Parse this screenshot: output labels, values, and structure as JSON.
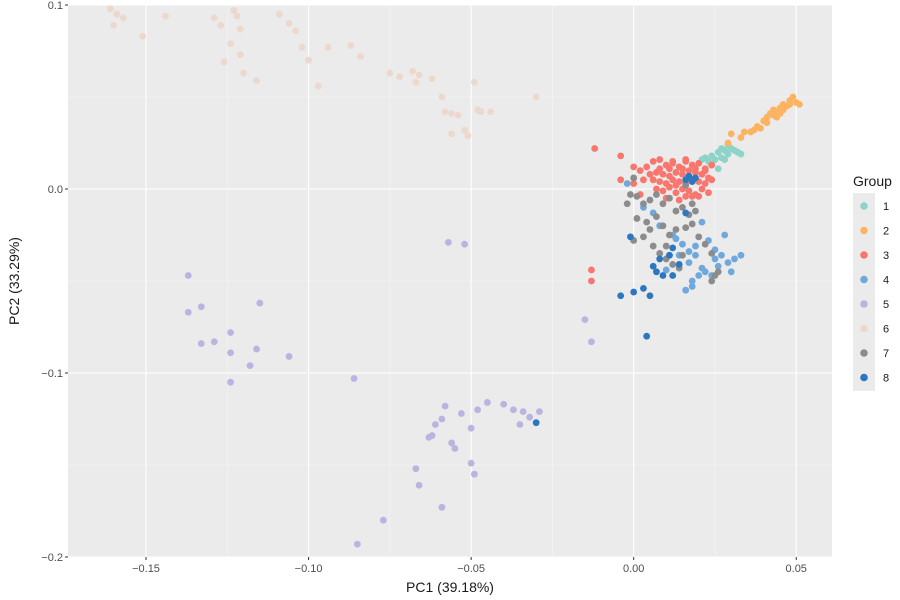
{
  "chart_data": {
    "type": "scatter",
    "title": "",
    "xlabel": "PC1 (39.18%)",
    "ylabel": "PC2 (33.29%)",
    "xlim": [
      -0.174,
      0.061
    ],
    "ylim": [
      -0.2,
      0.1
    ],
    "xticks": [
      -0.15,
      -0.1,
      -0.05,
      0.0,
      0.05
    ],
    "xtick_labels": [
      "−0.15",
      "−0.10",
      "−0.05",
      "0.00",
      "0.05"
    ],
    "yticks": [
      -0.2,
      -0.1,
      0.0,
      0.1
    ],
    "ytick_labels": [
      "−0.2",
      "−0.1",
      "0.0",
      "0.1"
    ],
    "grid": true,
    "legend": {
      "title": "Group",
      "placement": "right"
    },
    "series": [
      {
        "name": "1",
        "color": "#8dd3c7",
        "points": [
          [
            0.024,
            0.018
          ],
          [
            0.026,
            0.02
          ],
          [
            0.027,
            0.022
          ],
          [
            0.028,
            0.021
          ],
          [
            0.029,
            0.024
          ],
          [
            0.03,
            0.022
          ],
          [
            0.031,
            0.021
          ],
          [
            0.032,
            0.02
          ],
          [
            0.033,
            0.019
          ],
          [
            0.025,
            0.016
          ],
          [
            0.023,
            0.015
          ],
          [
            0.022,
            0.017
          ],
          [
            0.027,
            0.017
          ],
          [
            0.029,
            0.019
          ],
          [
            0.026,
            0.011
          ],
          [
            0.024,
            0.013
          ],
          [
            0.028,
            0.016
          ],
          [
            0.021,
            0.016
          ]
        ]
      },
      {
        "name": "2",
        "color": "#fdb462",
        "points": [
          [
            0.03,
            0.03
          ],
          [
            0.029,
            0.025
          ],
          [
            0.034,
            0.031
          ],
          [
            0.037,
            0.032
          ],
          [
            0.038,
            0.034
          ],
          [
            0.04,
            0.037
          ],
          [
            0.041,
            0.039
          ],
          [
            0.042,
            0.041
          ],
          [
            0.043,
            0.043
          ],
          [
            0.044,
            0.042
          ],
          [
            0.045,
            0.044
          ],
          [
            0.046,
            0.046
          ],
          [
            0.047,
            0.045
          ],
          [
            0.048,
            0.048
          ],
          [
            0.049,
            0.05
          ],
          [
            0.05,
            0.047
          ],
          [
            0.051,
            0.046
          ],
          [
            0.045,
            0.041
          ],
          [
            0.043,
            0.04
          ],
          [
            0.041,
            0.036
          ],
          [
            0.039,
            0.033
          ],
          [
            0.036,
            0.031
          ],
          [
            0.033,
            0.028
          ],
          [
            0.046,
            0.043
          ],
          [
            0.048,
            0.046
          ],
          [
            0.044,
            0.039
          ]
        ]
      },
      {
        "name": "3",
        "color": "#f8766d",
        "points": [
          [
            -0.012,
            0.022
          ],
          [
            -0.004,
            0.018
          ],
          [
            0.0,
            0.012
          ],
          [
            0.002,
            0.01
          ],
          [
            0.004,
            0.012
          ],
          [
            0.006,
            0.015
          ],
          [
            0.008,
            0.016
          ],
          [
            0.01,
            0.013
          ],
          [
            0.012,
            0.014
          ],
          [
            0.014,
            0.012
          ],
          [
            0.016,
            0.015
          ],
          [
            0.018,
            0.013
          ],
          [
            0.02,
            0.014
          ],
          [
            0.022,
            0.011
          ],
          [
            0.024,
            0.013
          ],
          [
            0.007,
            0.009
          ],
          [
            0.009,
            0.008
          ],
          [
            0.011,
            0.007
          ],
          [
            0.013,
            0.009
          ],
          [
            0.015,
            0.008
          ],
          [
            0.017,
            0.007
          ],
          [
            0.019,
            0.009
          ],
          [
            0.021,
            0.008
          ],
          [
            0.023,
            0.006
          ],
          [
            0.006,
            0.005
          ],
          [
            0.008,
            0.004
          ],
          [
            0.01,
            0.003
          ],
          [
            0.012,
            0.005
          ],
          [
            0.014,
            0.004
          ],
          [
            0.016,
            0.003
          ],
          [
            0.018,
            0.005
          ],
          [
            0.02,
            0.004
          ],
          [
            0.022,
            0.003
          ],
          [
            0.007,
            0.0
          ],
          [
            0.009,
            -0.001
          ],
          [
            0.011,
            0.001
          ],
          [
            0.013,
            -0.002
          ],
          [
            0.015,
            0.0
          ],
          [
            0.017,
            -0.001
          ],
          [
            0.019,
            -0.003
          ],
          [
            0.021,
            0.0
          ],
          [
            0.023,
            -0.002
          ],
          [
            0.01,
            -0.005
          ],
          [
            0.014,
            -0.006
          ],
          [
            0.018,
            -0.004
          ],
          [
            0.003,
            0.005
          ],
          [
            0.005,
            0.008
          ],
          [
            0.008,
            0.011
          ],
          [
            0.011,
            0.011
          ],
          [
            0.015,
            0.011
          ],
          [
            0.019,
            0.011
          ],
          [
            0.022,
            0.01
          ],
          [
            0.017,
            0.01
          ],
          [
            0.013,
            0.002
          ],
          [
            0.016,
            -0.004
          ],
          [
            0.02,
            -0.004
          ],
          [
            -0.004,
            0.005
          ],
          [
            0.0,
            0.003
          ],
          [
            0.002,
            -0.003
          ],
          [
            -0.013,
            -0.044
          ],
          [
            -0.013,
            -0.05
          ],
          [
            0.021,
            0.008
          ],
          [
            0.024,
            0.005
          ],
          [
            0.012,
            0.015
          ],
          [
            0.016,
            0.016
          ]
        ]
      },
      {
        "name": "4",
        "color": "#6fa8dc",
        "points": [
          [
            -0.002,
            0.003
          ],
          [
            0.003,
            -0.01
          ],
          [
            0.006,
            -0.013
          ],
          [
            0.008,
            -0.02
          ],
          [
            0.012,
            -0.025
          ],
          [
            0.015,
            -0.03
          ],
          [
            0.017,
            -0.034
          ],
          [
            0.019,
            -0.031
          ],
          [
            0.021,
            -0.018
          ],
          [
            0.023,
            -0.028
          ],
          [
            0.025,
            -0.033
          ],
          [
            0.027,
            -0.036
          ],
          [
            0.029,
            -0.04
          ],
          [
            0.03,
            -0.045
          ],
          [
            0.031,
            -0.038
          ],
          [
            0.033,
            -0.036
          ],
          [
            0.028,
            -0.025
          ],
          [
            0.026,
            -0.042
          ],
          [
            0.024,
            -0.047
          ],
          [
            0.022,
            -0.045
          ],
          [
            0.018,
            -0.05
          ],
          [
            0.018,
            -0.053
          ],
          [
            0.017,
            -0.04
          ],
          [
            0.014,
            -0.036
          ],
          [
            0.011,
            -0.036
          ],
          [
            0.01,
            -0.044
          ],
          [
            0.019,
            -0.036
          ],
          [
            0.02,
            -0.047
          ],
          [
            0.016,
            -0.055
          ],
          [
            0.013,
            -0.027
          ],
          [
            0.025,
            -0.038
          ],
          [
            0.021,
            -0.043
          ]
        ]
      },
      {
        "name": "5",
        "color": "#bcb3e0",
        "points": [
          [
            -0.137,
            -0.047
          ],
          [
            -0.137,
            -0.067
          ],
          [
            -0.133,
            -0.064
          ],
          [
            -0.133,
            -0.084
          ],
          [
            -0.129,
            -0.083
          ],
          [
            -0.124,
            -0.078
          ],
          [
            -0.124,
            -0.089
          ],
          [
            -0.124,
            -0.105
          ],
          [
            -0.115,
            -0.062
          ],
          [
            -0.116,
            -0.087
          ],
          [
            -0.118,
            -0.096
          ],
          [
            -0.106,
            -0.091
          ],
          [
            -0.086,
            -0.103
          ],
          [
            -0.057,
            -0.029
          ],
          [
            -0.052,
            -0.03
          ],
          [
            -0.058,
            -0.118
          ],
          [
            -0.059,
            -0.125
          ],
          [
            -0.061,
            -0.128
          ],
          [
            -0.062,
            -0.134
          ],
          [
            -0.063,
            -0.135
          ],
          [
            -0.053,
            -0.122
          ],
          [
            -0.056,
            -0.138
          ],
          [
            -0.055,
            -0.141
          ],
          [
            -0.05,
            -0.13
          ],
          [
            -0.048,
            -0.12
          ],
          [
            -0.045,
            -0.116
          ],
          [
            -0.04,
            -0.117
          ],
          [
            -0.037,
            -0.12
          ],
          [
            -0.035,
            -0.128
          ],
          [
            -0.034,
            -0.121
          ],
          [
            -0.032,
            -0.124
          ],
          [
            -0.029,
            -0.121
          ],
          [
            -0.067,
            -0.152
          ],
          [
            -0.066,
            -0.161
          ],
          [
            -0.059,
            -0.173
          ],
          [
            -0.05,
            -0.149
          ],
          [
            -0.049,
            -0.155
          ],
          [
            -0.077,
            -0.18
          ],
          [
            -0.085,
            -0.193
          ],
          [
            -0.015,
            -0.071
          ],
          [
            -0.013,
            -0.083
          ]
        ]
      },
      {
        "name": "6",
        "color": "#ecd8cc",
        "points": [
          [
            -0.168,
            0.103
          ],
          [
            -0.166,
            0.102
          ],
          [
            -0.161,
            0.098
          ],
          [
            -0.158,
            0.102
          ],
          [
            -0.159,
            0.095
          ],
          [
            -0.16,
            0.089
          ],
          [
            -0.157,
            0.093
          ],
          [
            -0.148,
            0.103
          ],
          [
            -0.151,
            0.083
          ],
          [
            -0.144,
            0.094
          ],
          [
            -0.129,
            0.093
          ],
          [
            -0.127,
            0.089
          ],
          [
            -0.124,
            0.101
          ],
          [
            -0.123,
            0.097
          ],
          [
            -0.122,
            0.094
          ],
          [
            -0.121,
            0.087
          ],
          [
            -0.124,
            0.079
          ],
          [
            -0.121,
            0.073
          ],
          [
            -0.126,
            0.069
          ],
          [
            -0.12,
            0.063
          ],
          [
            -0.116,
            0.059
          ],
          [
            -0.109,
            0.095
          ],
          [
            -0.106,
            0.09
          ],
          [
            -0.104,
            0.086
          ],
          [
            -0.102,
            0.077
          ],
          [
            -0.1,
            0.07
          ],
          [
            -0.097,
            0.056
          ],
          [
            -0.094,
            0.077
          ],
          [
            -0.087,
            0.078
          ],
          [
            -0.084,
            0.072
          ],
          [
            -0.075,
            0.063
          ],
          [
            -0.072,
            0.061
          ],
          [
            -0.068,
            0.064
          ],
          [
            -0.067,
            0.058
          ],
          [
            -0.066,
            0.062
          ],
          [
            -0.062,
            0.06
          ],
          [
            -0.059,
            0.05
          ],
          [
            -0.058,
            0.042
          ],
          [
            -0.056,
            0.041
          ],
          [
            -0.054,
            0.04
          ],
          [
            -0.052,
            0.032
          ],
          [
            -0.051,
            0.029
          ],
          [
            -0.049,
            0.058
          ],
          [
            -0.047,
            0.042
          ],
          [
            -0.048,
            0.043
          ],
          [
            -0.044,
            0.042
          ],
          [
            -0.03,
            0.05
          ],
          [
            -0.056,
            0.03
          ]
        ]
      },
      {
        "name": "7",
        "color": "#8c8c8c",
        "points": [
          [
            0.0,
            0.006
          ],
          [
            0.001,
            -0.004
          ],
          [
            -0.001,
            -0.003
          ],
          [
            0.003,
            -0.008
          ],
          [
            0.005,
            -0.006
          ],
          [
            0.007,
            -0.003
          ],
          [
            0.009,
            -0.008
          ],
          [
            0.011,
            -0.005
          ],
          [
            0.013,
            -0.012
          ],
          [
            0.015,
            -0.01
          ],
          [
            0.017,
            -0.014
          ],
          [
            0.019,
            -0.012
          ],
          [
            0.007,
            -0.015
          ],
          [
            0.009,
            -0.02
          ],
          [
            0.005,
            -0.022
          ],
          [
            0.004,
            -0.018
          ],
          [
            0.003,
            -0.026
          ],
          [
            0.006,
            -0.031
          ],
          [
            0.008,
            -0.035
          ],
          [
            0.01,
            -0.038
          ],
          [
            0.012,
            -0.041
          ],
          [
            0.014,
            -0.043
          ],
          [
            0.011,
            -0.025
          ],
          [
            0.013,
            -0.022
          ],
          [
            0.016,
            -0.021
          ],
          [
            0.018,
            -0.019
          ],
          [
            0.02,
            -0.026
          ],
          [
            0.022,
            -0.03
          ],
          [
            0.024,
            -0.035
          ],
          [
            0.026,
            -0.045
          ],
          [
            0.025,
            -0.047
          ],
          [
            0.024,
            -0.05
          ],
          [
            0.001,
            -0.016
          ],
          [
            0.0,
            -0.028
          ],
          [
            0.01,
            -0.031
          ],
          [
            0.015,
            -0.036
          ],
          [
            -0.002,
            -0.008
          ],
          [
            0.016,
            0.002
          ],
          [
            0.018,
            -0.008
          ]
        ]
      },
      {
        "name": "8",
        "color": "#2c78c0",
        "points": [
          [
            -0.001,
            -0.026
          ],
          [
            -0.004,
            -0.058
          ],
          [
            0.0,
            -0.056
          ],
          [
            0.003,
            -0.054
          ],
          [
            0.005,
            -0.058
          ],
          [
            0.006,
            -0.042
          ],
          [
            0.007,
            -0.045
          ],
          [
            0.009,
            -0.047
          ],
          [
            0.008,
            -0.038
          ],
          [
            0.011,
            -0.036
          ],
          [
            0.012,
            -0.032
          ],
          [
            0.012,
            -0.047
          ],
          [
            0.014,
            -0.041
          ],
          [
            0.016,
            -0.013
          ],
          [
            0.016,
            0.005
          ],
          [
            0.017,
            0.007
          ],
          [
            0.018,
            0.004
          ],
          [
            0.019,
            0.006
          ],
          [
            0.004,
            -0.08
          ],
          [
            -0.03,
            -0.127
          ]
        ]
      }
    ]
  }
}
